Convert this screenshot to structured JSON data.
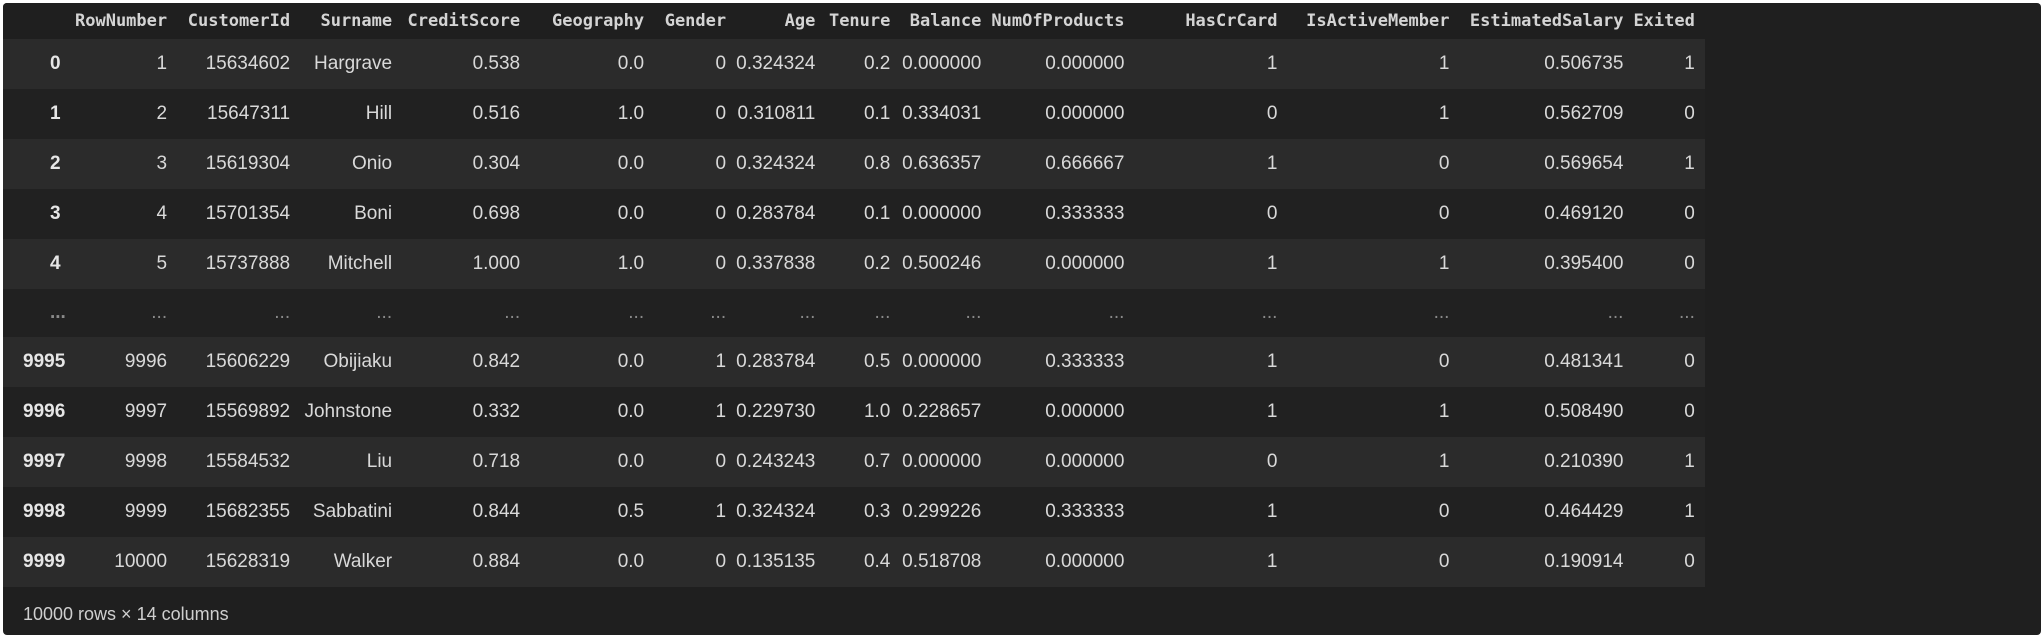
{
  "table": {
    "columns": [
      "RowNumber",
      "CustomerId",
      "Surname",
      "CreditScore",
      "Geography",
      "Gender",
      "Age",
      "Tenure",
      "Balance",
      "NumOfProducts",
      "HasCrCard",
      "IsActiveMember",
      "EstimatedSalary",
      "Exited"
    ],
    "rows": [
      {
        "index": "0",
        "cells": [
          "1",
          "15634602",
          "Hargrave",
          "0.538",
          "0.0",
          "0",
          "0.324324",
          "0.2",
          "0.000000",
          "0.000000",
          "1",
          "1",
          "0.506735",
          "1"
        ]
      },
      {
        "index": "1",
        "cells": [
          "2",
          "15647311",
          "Hill",
          "0.516",
          "1.0",
          "0",
          "0.310811",
          "0.1",
          "0.334031",
          "0.000000",
          "0",
          "1",
          "0.562709",
          "0"
        ]
      },
      {
        "index": "2",
        "cells": [
          "3",
          "15619304",
          "Onio",
          "0.304",
          "0.0",
          "0",
          "0.324324",
          "0.8",
          "0.636357",
          "0.666667",
          "1",
          "0",
          "0.569654",
          "1"
        ]
      },
      {
        "index": "3",
        "cells": [
          "4",
          "15701354",
          "Boni",
          "0.698",
          "0.0",
          "0",
          "0.283784",
          "0.1",
          "0.000000",
          "0.333333",
          "0",
          "0",
          "0.469120",
          "0"
        ]
      },
      {
        "index": "4",
        "cells": [
          "5",
          "15737888",
          "Mitchell",
          "1.000",
          "1.0",
          "0",
          "0.337838",
          "0.2",
          "0.500246",
          "0.000000",
          "1",
          "1",
          "0.395400",
          "0"
        ]
      },
      {
        "index": "...",
        "cells": [
          "...",
          "...",
          "...",
          "...",
          "...",
          "...",
          "...",
          "...",
          "...",
          "...",
          "...",
          "...",
          "...",
          "..."
        ]
      },
      {
        "index": "9995",
        "cells": [
          "9996",
          "15606229",
          "Obijiaku",
          "0.842",
          "0.0",
          "1",
          "0.283784",
          "0.5",
          "0.000000",
          "0.333333",
          "1",
          "0",
          "0.481341",
          "0"
        ]
      },
      {
        "index": "9996",
        "cells": [
          "9997",
          "15569892",
          "Johnstone",
          "0.332",
          "0.0",
          "1",
          "0.229730",
          "1.0",
          "0.228657",
          "0.000000",
          "1",
          "1",
          "0.508490",
          "0"
        ]
      },
      {
        "index": "9997",
        "cells": [
          "9998",
          "15584532",
          "Liu",
          "0.718",
          "0.0",
          "0",
          "0.243243",
          "0.7",
          "0.000000",
          "0.000000",
          "0",
          "1",
          "0.210390",
          "1"
        ]
      },
      {
        "index": "9998",
        "cells": [
          "9999",
          "15682355",
          "Sabbatini",
          "0.844",
          "0.5",
          "1",
          "0.324324",
          "0.3",
          "0.299226",
          "0.333333",
          "1",
          "0",
          "0.464429",
          "1"
        ]
      },
      {
        "index": "9999",
        "cells": [
          "10000",
          "15628319",
          "Walker",
          "0.884",
          "0.0",
          "0",
          "0.135135",
          "0.4",
          "0.518708",
          "0.000000",
          "1",
          "0",
          "0.190914",
          "0"
        ]
      }
    ],
    "footer": "10000 rows × 14 columns"
  },
  "colors": {
    "background": "#1f1f1f",
    "row_odd": "#2b2b2b",
    "row_even": "#212121",
    "text": "#d9d9d9"
  }
}
